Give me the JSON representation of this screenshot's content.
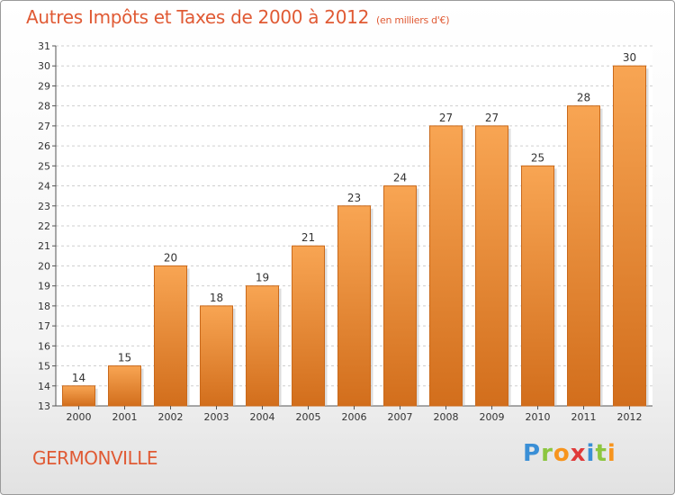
{
  "header": {
    "title": "Autres Impôts et Taxes de 2000 à 2012",
    "unit": "(en milliers d'€)"
  },
  "footer": {
    "town": "GERMONVILLE"
  },
  "logo": {
    "letters": [
      "P",
      "r",
      "o",
      "x",
      "i",
      "t",
      "i"
    ],
    "colors": [
      "#3a8fd6",
      "#8cc63f",
      "#f7941d",
      "#e03a3a",
      "#3a8fd6",
      "#8cc63f",
      "#f7941d"
    ]
  },
  "colors": {
    "bar_top": "#f8a553",
    "bar_bottom": "#d26e1c",
    "bar_edge": "#c9691b",
    "grid": "#cfcfcf",
    "axis": "#555555",
    "text": "#333333"
  },
  "chart_data": {
    "type": "bar",
    "categories": [
      "2000",
      "2001",
      "2002",
      "2003",
      "2004",
      "2005",
      "2006",
      "2007",
      "2008",
      "2009",
      "2010",
      "2011",
      "2012"
    ],
    "values": [
      14,
      15,
      20,
      18,
      19,
      21,
      23,
      24,
      27,
      27,
      25,
      28,
      30
    ],
    "title": "Autres Impôts et Taxes de 2000 à 2012",
    "xlabel": "",
    "ylabel": "",
    "ylim": [
      13,
      31
    ],
    "yticks": [
      13,
      14,
      15,
      16,
      17,
      18,
      19,
      20,
      21,
      22,
      23,
      24,
      25,
      26,
      27,
      28,
      29,
      30,
      31
    ],
    "grid": true,
    "data_labels": true
  }
}
